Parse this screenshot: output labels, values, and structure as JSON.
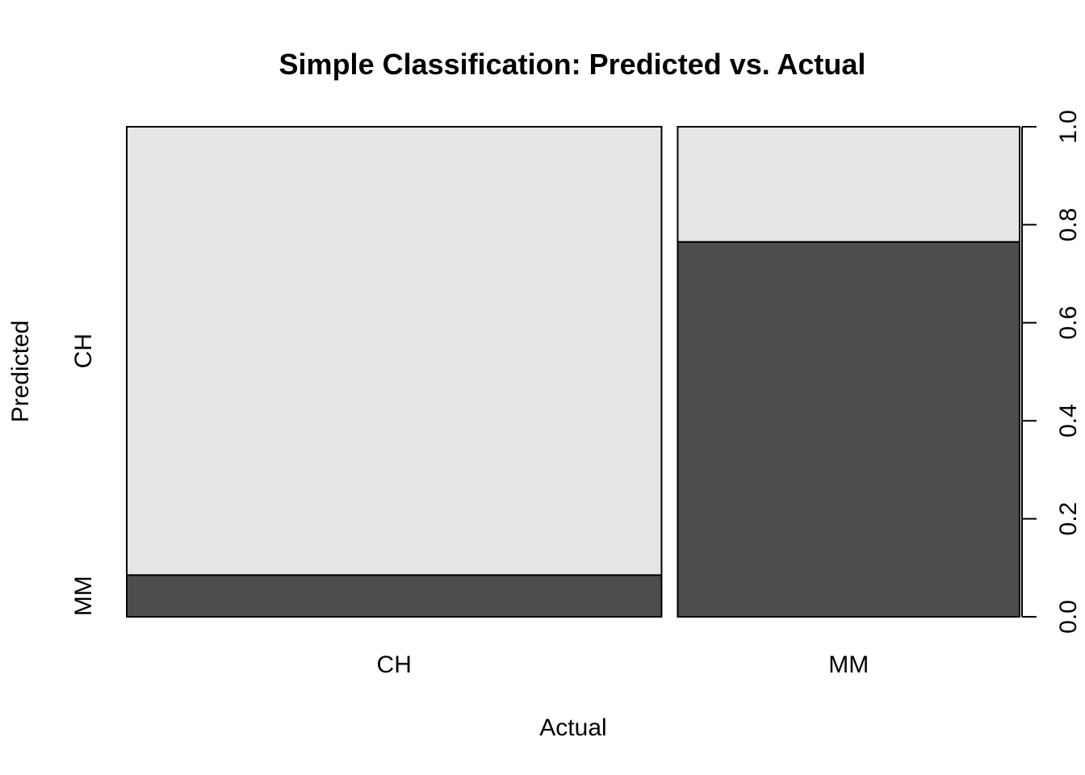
{
  "chart_data": {
    "type": "mosaic",
    "title": "Simple Classification: Predicted vs. Actual",
    "xlabel": "Actual",
    "ylabel": "Predicted",
    "x_categories": [
      "CH",
      "MM"
    ],
    "y_categories": [
      "MM",
      "CH"
    ],
    "column_widths": [
      0.61,
      0.39
    ],
    "cells": [
      {
        "actual": "CH",
        "predicted": "MM",
        "proportion": 0.085
      },
      {
        "actual": "CH",
        "predicted": "CH",
        "proportion": 0.915
      },
      {
        "actual": "MM",
        "predicted": "MM",
        "proportion": 0.765
      },
      {
        "actual": "MM",
        "predicted": "CH",
        "proportion": 0.235
      }
    ],
    "right_axis": {
      "ylim": [
        0,
        1
      ],
      "ticks": [
        "0.0",
        "0.2",
        "0.4",
        "0.6",
        "0.8",
        "1.0"
      ]
    },
    "colors": {
      "MM": "#4d4d4d",
      "CH": "#e6e6e6"
    }
  }
}
